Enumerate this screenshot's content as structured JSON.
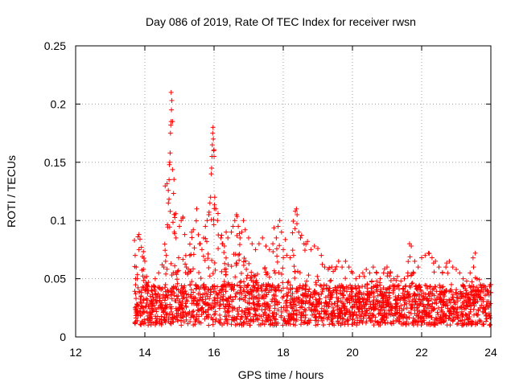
{
  "chart_data": {
    "type": "scatter",
    "title": "Day 086 of 2019, Rate Of TEC Index for receiver rwsn",
    "xlabel": "GPS time / hours",
    "ylabel": "ROTI / TECUs",
    "xlim": [
      12,
      24
    ],
    "ylim": [
      0,
      0.25
    ],
    "x_ticks": [
      12,
      14,
      16,
      18,
      20,
      22,
      24
    ],
    "x_tick_labels": [
      "12",
      "14",
      "16",
      "18",
      "20",
      "22",
      "24"
    ],
    "y_ticks": [
      0,
      0.05,
      0.1,
      0.15,
      0.2,
      0.25
    ],
    "y_tick_labels": [
      "0",
      "0.05",
      "0.1",
      "0.15",
      "0.2",
      "0.25"
    ],
    "grid": true,
    "marker": "+",
    "color": "#ff0000",
    "series": [
      {
        "name": "ROTI",
        "points": [
          [
            13.7,
            0.083
          ],
          [
            13.72,
            0.07
          ],
          [
            13.75,
            0.06
          ],
          [
            13.78,
            0.05
          ],
          [
            13.8,
            0.086
          ],
          [
            13.83,
            0.088
          ],
          [
            13.86,
            0.084
          ],
          [
            13.9,
            0.077
          ],
          [
            13.93,
            0.069
          ],
          [
            13.96,
            0.058
          ],
          [
            14.0,
            0.065
          ],
          [
            14.05,
            0.052
          ],
          [
            14.1,
            0.047
          ],
          [
            14.2,
            0.043
          ],
          [
            14.3,
            0.05
          ],
          [
            14.4,
            0.055
          ],
          [
            14.5,
            0.062
          ],
          [
            14.55,
            0.06
          ],
          [
            14.6,
            0.065
          ],
          [
            14.62,
            0.07
          ],
          [
            14.68,
            0.115
          ],
          [
            14.7,
            0.135
          ],
          [
            14.71,
            0.148
          ],
          [
            14.72,
            0.15
          ],
          [
            14.73,
            0.158
          ],
          [
            14.74,
            0.175
          ],
          [
            14.75,
            0.182
          ],
          [
            14.76,
            0.185
          ],
          [
            14.77,
            0.195
          ],
          [
            14.78,
            0.203
          ],
          [
            14.76,
            0.21
          ],
          [
            14.8,
            0.185
          ],
          [
            14.85,
            0.09
          ],
          [
            14.9,
            0.085
          ],
          [
            15.0,
            0.095
          ],
          [
            15.05,
            0.1
          ],
          [
            15.1,
            0.103
          ],
          [
            15.2,
            0.06
          ],
          [
            15.3,
            0.07
          ],
          [
            15.35,
            0.09
          ],
          [
            15.4,
            0.092
          ],
          [
            15.5,
            0.11
          ],
          [
            15.6,
            0.08
          ],
          [
            15.65,
            0.075
          ],
          [
            15.7,
            0.085
          ],
          [
            15.75,
            0.095
          ],
          [
            15.8,
            0.1
          ],
          [
            15.85,
            0.105
          ],
          [
            15.88,
            0.115
          ],
          [
            15.9,
            0.12
          ],
          [
            15.92,
            0.14
          ],
          [
            15.93,
            0.145
          ],
          [
            15.94,
            0.155
          ],
          [
            15.95,
            0.165
          ],
          [
            15.96,
            0.175
          ],
          [
            15.97,
            0.18
          ],
          [
            15.98,
            0.17
          ],
          [
            15.99,
            0.16
          ],
          [
            16.0,
            0.155
          ],
          [
            16.02,
            0.12
          ],
          [
            16.05,
            0.11
          ],
          [
            16.1,
            0.1
          ],
          [
            16.2,
            0.085
          ],
          [
            16.25,
            0.08
          ],
          [
            16.3,
            0.078
          ],
          [
            16.35,
            0.09
          ],
          [
            16.4,
            0.085
          ],
          [
            16.5,
            0.09
          ],
          [
            16.55,
            0.095
          ],
          [
            16.6,
            0.1
          ],
          [
            16.65,
            0.105
          ],
          [
            16.7,
            0.095
          ],
          [
            16.75,
            0.085
          ],
          [
            16.8,
            0.09
          ],
          [
            16.85,
            0.1
          ],
          [
            16.9,
            0.092
          ],
          [
            17.0,
            0.085
          ],
          [
            17.1,
            0.08
          ],
          [
            17.2,
            0.075
          ],
          [
            17.3,
            0.08
          ],
          [
            17.4,
            0.085
          ],
          [
            17.5,
            0.078
          ],
          [
            17.6,
            0.075
          ],
          [
            17.7,
            0.08
          ],
          [
            17.8,
            0.085
          ],
          [
            17.85,
            0.095
          ],
          [
            17.9,
            0.1
          ],
          [
            17.95,
            0.09
          ],
          [
            18.0,
            0.075
          ],
          [
            18.1,
            0.07
          ],
          [
            18.2,
            0.068
          ],
          [
            18.3,
            0.07
          ],
          [
            18.35,
            0.108
          ],
          [
            18.38,
            0.11
          ],
          [
            18.4,
            0.105
          ],
          [
            18.45,
            0.09
          ],
          [
            18.5,
            0.085
          ],
          [
            18.6,
            0.08
          ],
          [
            18.7,
            0.082
          ],
          [
            18.8,
            0.075
          ],
          [
            18.9,
            0.078
          ],
          [
            19.0,
            0.076
          ],
          [
            19.1,
            0.07
          ],
          [
            19.2,
            0.06
          ],
          [
            19.3,
            0.058
          ],
          [
            19.4,
            0.06
          ],
          [
            19.5,
            0.058
          ],
          [
            19.6,
            0.065
          ],
          [
            19.7,
            0.06
          ],
          [
            19.8,
            0.065
          ],
          [
            19.9,
            0.06
          ],
          [
            20.0,
            0.055
          ],
          [
            20.1,
            0.05
          ],
          [
            20.2,
            0.052
          ],
          [
            20.3,
            0.055
          ],
          [
            20.4,
            0.058
          ],
          [
            20.5,
            0.055
          ],
          [
            20.6,
            0.06
          ],
          [
            20.7,
            0.055
          ],
          [
            20.8,
            0.05
          ],
          [
            20.9,
            0.055
          ],
          [
            21.0,
            0.06
          ],
          [
            21.1,
            0.055
          ],
          [
            21.2,
            0.05
          ],
          [
            21.3,
            0.052
          ],
          [
            21.4,
            0.048
          ],
          [
            21.5,
            0.05
          ],
          [
            21.6,
            0.055
          ],
          [
            21.65,
            0.08
          ],
          [
            21.7,
            0.078
          ],
          [
            21.8,
            0.065
          ],
          [
            21.9,
            0.06
          ],
          [
            22.0,
            0.068
          ],
          [
            22.1,
            0.07
          ],
          [
            22.2,
            0.072
          ],
          [
            22.3,
            0.068
          ],
          [
            22.4,
            0.065
          ],
          [
            22.5,
            0.06
          ],
          [
            22.6,
            0.055
          ],
          [
            22.7,
            0.06
          ],
          [
            22.8,
            0.065
          ],
          [
            22.9,
            0.06
          ],
          [
            23.0,
            0.058
          ],
          [
            23.1,
            0.055
          ],
          [
            23.2,
            0.05
          ],
          [
            23.3,
            0.048
          ],
          [
            23.4,
            0.055
          ],
          [
            23.5,
            0.06
          ],
          [
            23.55,
            0.072
          ],
          [
            23.6,
            0.05
          ],
          [
            23.7,
            0.045
          ],
          [
            23.8,
            0.042
          ],
          [
            23.9,
            0.04
          ],
          [
            24.0,
            0.045
          ]
        ]
      }
    ]
  }
}
